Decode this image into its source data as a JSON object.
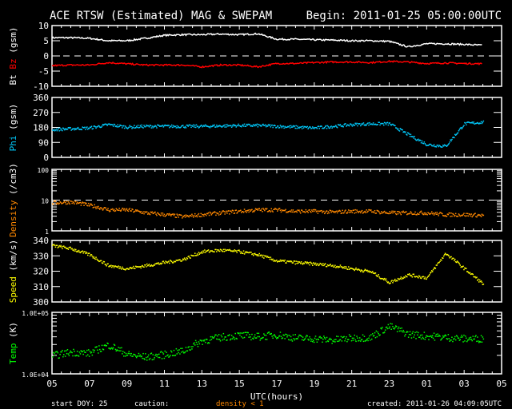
{
  "header": {
    "title": "ACE RTSW (Estimated) MAG & SWEPAM",
    "begin": "Begin: 2011-01-25 05:00:00UTC"
  },
  "footer": {
    "start_doy": "start DOY:  25",
    "caution": "caution:",
    "caution_note": "density < 1",
    "created": "created: 2011-01-26 04:09:05UTC"
  },
  "colors": {
    "bt": "#ffffff",
    "bz": "#ff0000",
    "phi": "#00ccff",
    "density": "#ff8800",
    "speed": "#ffff00",
    "temp": "#00ff00"
  },
  "chart_data": [
    {
      "type": "line",
      "ylabel_parts": [
        "Bt",
        "Bz",
        "(gsm)"
      ],
      "ylim": [
        -10,
        10
      ],
      "yticks": [
        "10",
        "5",
        "0",
        "-5",
        "-10"
      ],
      "ytick_values": [
        10,
        5,
        0,
        -5,
        -10
      ],
      "dashed_zero": 0,
      "x_hours_from_start": [
        0,
        1,
        2,
        3,
        4,
        5,
        6,
        7,
        8,
        9,
        10,
        11,
        12,
        13,
        14,
        15,
        16,
        17,
        18,
        19,
        20,
        21,
        22,
        23
      ],
      "series": [
        {
          "name": "Bt",
          "values": [
            6,
            6,
            5.8,
            5,
            5,
            5.8,
            6.8,
            7,
            7,
            7.2,
            7,
            7.3,
            5.5,
            5.5,
            5.3,
            5.2,
            5,
            5,
            4.8,
            3,
            4,
            4,
            3.8,
            3.5
          ]
        },
        {
          "name": "Bz",
          "values": [
            -3.2,
            -3,
            -3,
            -2.2,
            -2.6,
            -3,
            -3,
            -3,
            -3.6,
            -3,
            -3,
            -3.6,
            -2.5,
            -2.5,
            -2.2,
            -2,
            -2,
            -2.2,
            -1.8,
            -2,
            -2.5,
            -2.3,
            -2.5,
            -2.6
          ]
        }
      ]
    },
    {
      "type": "scatter",
      "ylabel_parts": [
        "Phi",
        "(gsm)"
      ],
      "ylim": [
        0,
        360
      ],
      "yticks": [
        "360",
        "270",
        "180",
        "90",
        "0"
      ],
      "ytick_values": [
        360,
        270,
        180,
        90,
        0
      ],
      "series": [
        {
          "name": "Phi",
          "values": [
            170,
            175,
            180,
            200,
            185,
            190,
            190,
            190,
            190,
            192,
            195,
            195,
            190,
            185,
            180,
            190,
            200,
            205,
            205,
            140,
            80,
            70,
            205,
            215
          ]
        }
      ]
    },
    {
      "type": "scatter",
      "scale": "log",
      "ylabel_parts": [
        "Density",
        "(/cm3)"
      ],
      "ylim": [
        1,
        100
      ],
      "yticks": [
        "100",
        "10",
        "1"
      ],
      "ytick_values": [
        100,
        10,
        1
      ],
      "dashed_line": 10,
      "series": [
        {
          "name": "Density",
          "values": [
            8.5,
            9,
            7,
            5,
            5,
            4,
            3.5,
            3,
            3.5,
            4,
            4.5,
            5,
            5,
            4.5,
            4.5,
            4.2,
            4.5,
            4.5,
            4,
            4,
            4,
            3.5,
            3.5,
            3.3
          ]
        }
      ]
    },
    {
      "type": "scatter",
      "ylabel_parts": [
        "Speed",
        "(km/s)"
      ],
      "ylim": [
        300,
        340
      ],
      "yticks": [
        "340",
        "330",
        "320",
        "310",
        "300"
      ],
      "ytick_values": [
        340,
        330,
        320,
        310,
        300
      ],
      "series": [
        {
          "name": "Speed",
          "values": [
            337,
            335,
            331,
            324,
            322,
            324,
            326,
            328,
            333,
            334,
            333,
            331,
            327,
            326,
            325,
            324,
            322,
            320,
            313,
            318,
            316,
            332,
            322,
            312
          ]
        }
      ]
    },
    {
      "type": "scatter",
      "scale": "log",
      "ylabel_parts": [
        "Temp",
        "(K)"
      ],
      "ylim": [
        10000,
        100000
      ],
      "yticks": [
        "1.0E+05",
        "1.0E+04"
      ],
      "ytick_values": [
        100000,
        10000
      ],
      "series": [
        {
          "name": "Temp",
          "values": [
            20000,
            23000,
            22000,
            30000,
            21000,
            19000,
            21000,
            24000,
            35000,
            40000,
            43000,
            41000,
            44000,
            39000,
            38000,
            36000,
            39000,
            40000,
            60000,
            45000,
            42000,
            40000,
            38000,
            38000
          ]
        }
      ]
    }
  ],
  "xaxis": {
    "label": "UTC(hours)",
    "range_hours": [
      0,
      24
    ],
    "ticks": [
      "05",
      "07",
      "09",
      "11",
      "13",
      "15",
      "17",
      "19",
      "21",
      "23",
      "01",
      "03",
      "05"
    ]
  }
}
